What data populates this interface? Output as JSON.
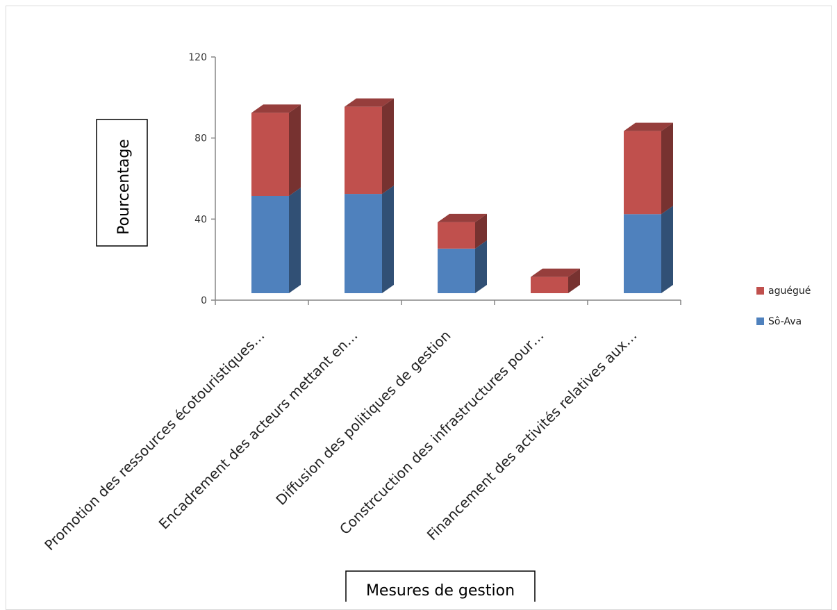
{
  "chart_data": {
    "type": "bar",
    "stacked": true,
    "three_d": true,
    "title": "",
    "xlabel": "Mesures de gestion",
    "ylabel": "Pourcentage",
    "ylim": [
      0,
      120
    ],
    "yticks": [
      0,
      40,
      80,
      120
    ],
    "grid": false,
    "legend_position": "right",
    "categories": [
      "Promotion des ressources écotouristiques…",
      "Encadrement des acteurs mettant en…",
      "Diffusion des politiques de gestion",
      "Constrcuction des infrastructures pour…",
      "Financement des activités relatives aux…"
    ],
    "series": [
      {
        "name": "Sô-Ava",
        "color": "#4F81BD",
        "values": [
          48,
          49,
          22,
          0,
          39
        ]
      },
      {
        "name": "aguégué",
        "color": "#C0504D",
        "values": [
          41,
          43,
          13,
          8,
          41
        ]
      }
    ]
  }
}
